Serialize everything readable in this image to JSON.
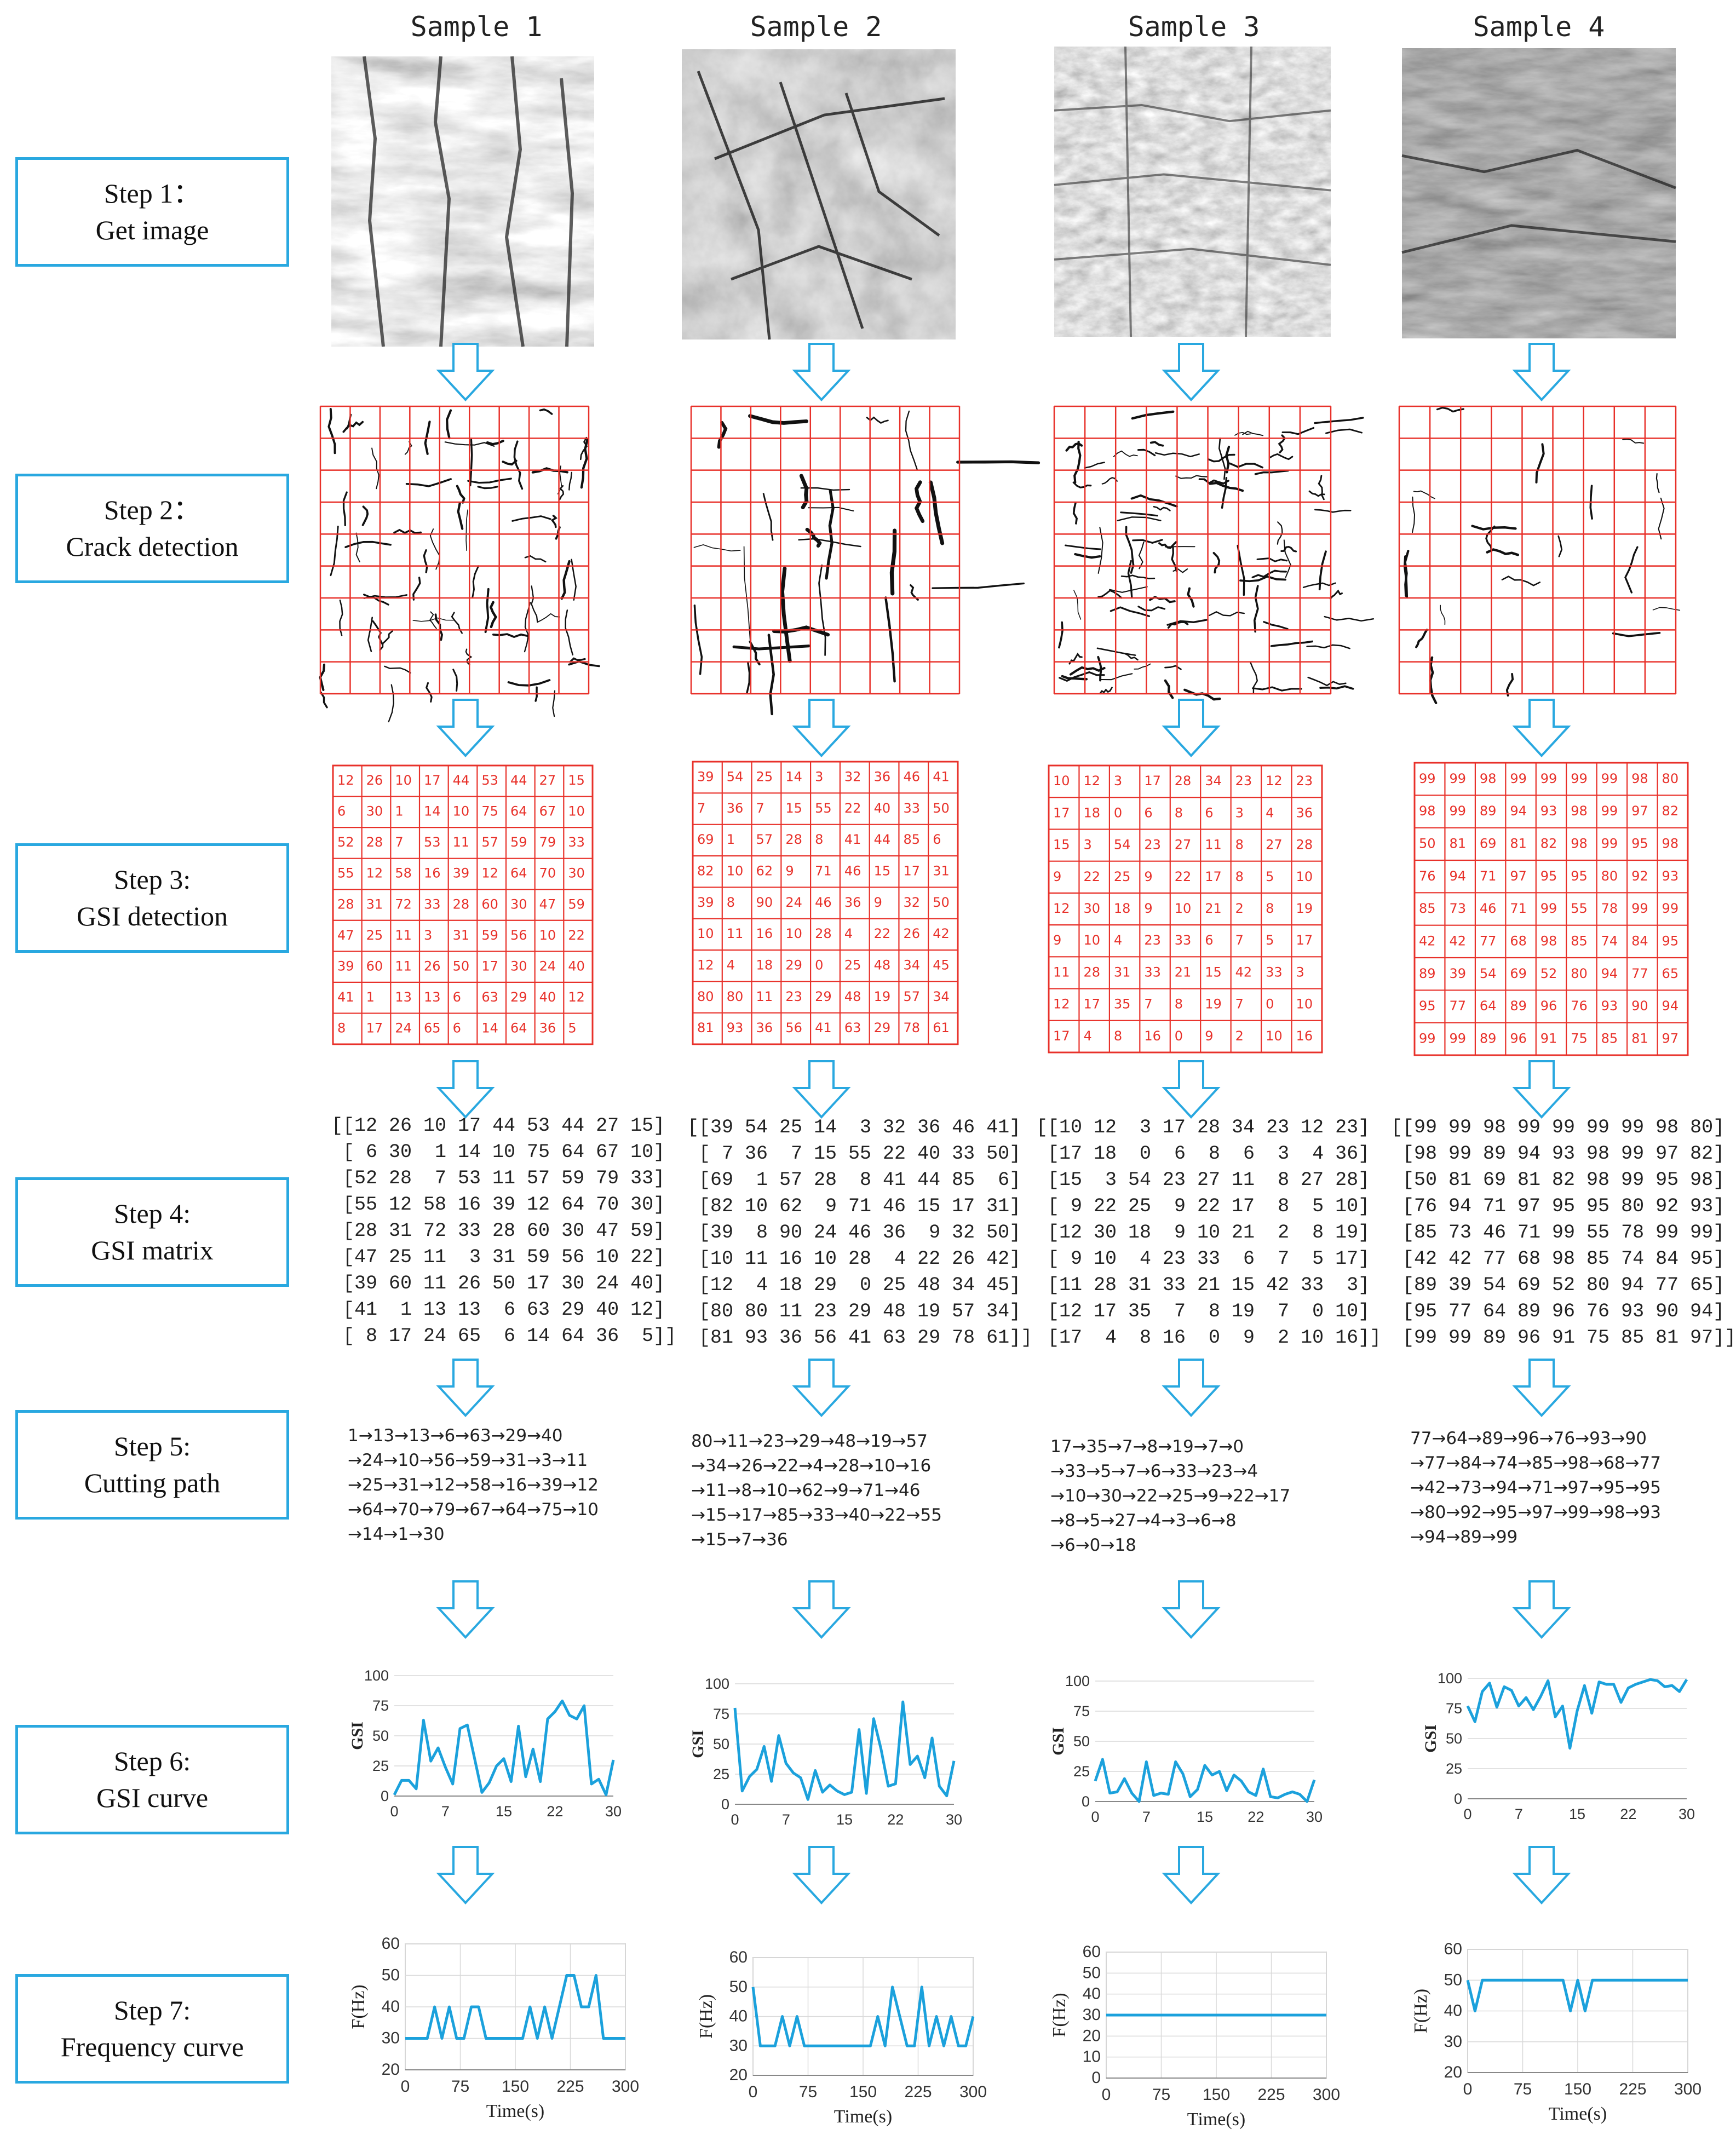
{
  "samples": [
    "Sample 1",
    "Sample 2",
    "Sample 3",
    "Sample 4"
  ],
  "steps": [
    {
      "title": "Step 1：",
      "subtitle": "Get image"
    },
    {
      "title": "Step 2：",
      "subtitle": "Crack detection"
    },
    {
      "title": "Step 3:",
      "subtitle": "GSI detection"
    },
    {
      "title": "Step 4:",
      "subtitle": "GSI matrix"
    },
    {
      "title": "Step 5:",
      "subtitle": "Cutting path"
    },
    {
      "title": "Step 6:",
      "subtitle": "GSI curve"
    },
    {
      "title": "Step 7:",
      "subtitle": "Frequency curve"
    }
  ],
  "matrices": [
    [
      [
        12,
        26,
        10,
        17,
        44,
        53,
        44,
        27,
        15
      ],
      [
        6,
        30,
        1,
        14,
        10,
        75,
        64,
        67,
        10
      ],
      [
        52,
        28,
        7,
        53,
        11,
        57,
        59,
        79,
        33
      ],
      [
        55,
        12,
        58,
        16,
        39,
        12,
        64,
        70,
        30
      ],
      [
        28,
        31,
        72,
        33,
        28,
        60,
        30,
        47,
        59
      ],
      [
        47,
        25,
        11,
        3,
        31,
        59,
        56,
        10,
        22
      ],
      [
        39,
        60,
        11,
        26,
        50,
        17,
        30,
        24,
        40
      ],
      [
        41,
        1,
        13,
        13,
        6,
        63,
        29,
        40,
        12
      ],
      [
        8,
        17,
        24,
        65,
        6,
        14,
        64,
        36,
        5
      ]
    ],
    [
      [
        39,
        54,
        25,
        14,
        3,
        32,
        36,
        46,
        41
      ],
      [
        7,
        36,
        7,
        15,
        55,
        22,
        40,
        33,
        50
      ],
      [
        69,
        1,
        57,
        28,
        8,
        41,
        44,
        85,
        6
      ],
      [
        82,
        10,
        62,
        9,
        71,
        46,
        15,
        17,
        31
      ],
      [
        39,
        8,
        90,
        24,
        46,
        36,
        9,
        32,
        50
      ],
      [
        10,
        11,
        16,
        10,
        28,
        4,
        22,
        26,
        42
      ],
      [
        12,
        4,
        18,
        29,
        0,
        25,
        48,
        34,
        45
      ],
      [
        80,
        80,
        11,
        23,
        29,
        48,
        19,
        57,
        34
      ],
      [
        81,
        93,
        36,
        56,
        41,
        63,
        29,
        78,
        61
      ]
    ],
    [
      [
        10,
        12,
        3,
        17,
        28,
        34,
        23,
        12,
        23
      ],
      [
        17,
        18,
        0,
        6,
        8,
        6,
        3,
        4,
        36
      ],
      [
        15,
        3,
        54,
        23,
        27,
        11,
        8,
        27,
        28
      ],
      [
        9,
        22,
        25,
        9,
        22,
        17,
        8,
        5,
        10
      ],
      [
        12,
        30,
        18,
        9,
        10,
        21,
        2,
        8,
        19
      ],
      [
        9,
        10,
        4,
        23,
        33,
        6,
        7,
        5,
        17
      ],
      [
        11,
        28,
        31,
        33,
        21,
        15,
        42,
        33,
        3
      ],
      [
        12,
        17,
        35,
        7,
        8,
        19,
        7,
        0,
        10
      ],
      [
        17,
        4,
        8,
        16,
        0,
        9,
        2,
        10,
        16
      ]
    ],
    [
      [
        99,
        99,
        98,
        99,
        99,
        99,
        99,
        98,
        80
      ],
      [
        98,
        99,
        89,
        94,
        93,
        98,
        99,
        97,
        82
      ],
      [
        50,
        81,
        69,
        81,
        82,
        98,
        99,
        95,
        98
      ],
      [
        76,
        94,
        71,
        97,
        95,
        95,
        80,
        92,
        93
      ],
      [
        85,
        73,
        46,
        71,
        99,
        55,
        78,
        99,
        99
      ],
      [
        42,
        42,
        77,
        68,
        98,
        85,
        74,
        84,
        95
      ],
      [
        89,
        39,
        54,
        69,
        52,
        80,
        94,
        77,
        65
      ],
      [
        95,
        77,
        64,
        89,
        96,
        76,
        93,
        90,
        94
      ],
      [
        99,
        99,
        89,
        96,
        91,
        75,
        85,
        81,
        97
      ]
    ]
  ],
  "matrix_text": [
    "[[12 26 10 17 44 53 44 27 15]\n [ 6 30  1 14 10 75 64 67 10]\n [52 28  7 53 11 57 59 79 33]\n [55 12 58 16 39 12 64 70 30]\n [28 31 72 33 28 60 30 47 59]\n [47 25 11  3 31 59 56 10 22]\n [39 60 11 26 50 17 30 24 40]\n [41  1 13 13  6 63 29 40 12]\n [ 8 17 24 65  6 14 64 36  5]]",
    "[[39 54 25 14  3 32 36 46 41]\n [ 7 36  7 15 55 22 40 33 50]\n [69  1 57 28  8 41 44 85  6]\n [82 10 62  9 71 46 15 17 31]\n [39  8 90 24 46 36  9 32 50]\n [10 11 16 10 28  4 22 26 42]\n [12  4 18 29  0 25 48 34 45]\n [80 80 11 23 29 48 19 57 34]\n [81 93 36 56 41 63 29 78 61]]",
    "[[10 12  3 17 28 34 23 12 23]\n [17 18  0  6  8  6  3  4 36]\n [15  3 54 23 27 11  8 27 28]\n [ 9 22 25  9 22 17  8  5 10]\n [12 30 18  9 10 21  2  8 19]\n [ 9 10  4 23 33  6  7  5 17]\n [11 28 31 33 21 15 42 33  3]\n [12 17 35  7  8 19  7  0 10]\n [17  4  8 16  0  9  2 10 16]]",
    "[[99 99 98 99 99 99 99 98 80]\n [98 99 89 94 93 98 99 97 82]\n [50 81 69 81 82 98 99 95 98]\n [76 94 71 97 95 95 80 92 93]\n [85 73 46 71 99 55 78 99 99]\n [42 42 77 68 98 85 74 84 95]\n [89 39 54 69 52 80 94 77 65]\n [95 77 64 89 96 76 93 90 94]\n [99 99 89 96 91 75 85 81 97]]"
  ],
  "paths": [
    "1→13→13→6→63→29→40\n→24→10→56→59→31→3→11\n→25→31→12→58→16→39→12\n→64→70→79→67→64→75→10\n→14→1→30",
    "80→11→23→29→48→19→57\n→34→26→22→4→28→10→16\n→11→8→10→62→9→71→46\n→15→17→85→33→40→22→55\n→15→7→36",
    "17→35→7→8→19→7→0\n→33→5→7→6→33→23→4\n→10→30→22→25→9→22→17\n→8→5→27→4→3→6→8\n→6→0→18",
    "77→64→89→96→76→93→90\n→77→84→74→85→98→68→77\n→42→73→94→71→97→95→95\n→80→92→95→97→99→98→93\n→94→89→99"
  ],
  "chart_data": [
    {
      "type": "line",
      "sample": "Sample 1",
      "ylabel": "GSI",
      "xticks": [
        0,
        7,
        15,
        22,
        30
      ],
      "yticks": [
        0,
        25,
        50,
        75,
        100
      ],
      "ylim": [
        0,
        100
      ],
      "xlim": [
        0,
        30
      ],
      "x": [
        0,
        1,
        2,
        3,
        4,
        5,
        6,
        7,
        8,
        9,
        10,
        11,
        12,
        13,
        14,
        15,
        16,
        17,
        18,
        19,
        20,
        21,
        22,
        23,
        24,
        25,
        26,
        27,
        28,
        29,
        30
      ],
      "y": [
        1,
        13,
        13,
        6,
        63,
        29,
        40,
        24,
        10,
        56,
        59,
        31,
        3,
        11,
        25,
        31,
        12,
        58,
        16,
        39,
        12,
        64,
        70,
        79,
        67,
        64,
        75,
        10,
        14,
        1,
        30
      ]
    },
    {
      "type": "line",
      "sample": "Sample 2",
      "ylabel": "GSI",
      "xticks": [
        0,
        7,
        15,
        22,
        30
      ],
      "yticks": [
        0,
        25,
        50,
        75,
        100
      ],
      "ylim": [
        0,
        100
      ],
      "xlim": [
        0,
        30
      ],
      "x": [
        0,
        1,
        2,
        3,
        4,
        5,
        6,
        7,
        8,
        9,
        10,
        11,
        12,
        13,
        14,
        15,
        16,
        17,
        18,
        19,
        20,
        21,
        22,
        23,
        24,
        25,
        26,
        27,
        28,
        29,
        30
      ],
      "y": [
        80,
        11,
        23,
        29,
        48,
        19,
        57,
        34,
        26,
        22,
        4,
        28,
        10,
        16,
        11,
        8,
        10,
        62,
        9,
        71,
        46,
        15,
        17,
        85,
        33,
        40,
        22,
        55,
        15,
        7,
        36
      ]
    },
    {
      "type": "line",
      "sample": "Sample 3",
      "ylabel": "GSI",
      "xticks": [
        0,
        7,
        15,
        22,
        30
      ],
      "yticks": [
        0,
        25,
        50,
        75,
        100
      ],
      "ylim": [
        0,
        100
      ],
      "xlim": [
        0,
        30
      ],
      "x": [
        0,
        1,
        2,
        3,
        4,
        5,
        6,
        7,
        8,
        9,
        10,
        11,
        12,
        13,
        14,
        15,
        16,
        17,
        18,
        19,
        20,
        21,
        22,
        23,
        24,
        25,
        26,
        27,
        28,
        29,
        30
      ],
      "y": [
        17,
        35,
        7,
        8,
        19,
        7,
        0,
        33,
        5,
        7,
        6,
        33,
        23,
        4,
        10,
        30,
        22,
        25,
        9,
        22,
        17,
        8,
        5,
        27,
        4,
        3,
        6,
        8,
        6,
        0,
        18
      ]
    },
    {
      "type": "line",
      "sample": "Sample 4",
      "ylabel": "GSI",
      "xticks": [
        0,
        7,
        15,
        22,
        30
      ],
      "yticks": [
        0,
        25,
        50,
        75,
        100
      ],
      "ylim": [
        0,
        100
      ],
      "xlim": [
        0,
        30
      ],
      "x": [
        0,
        1,
        2,
        3,
        4,
        5,
        6,
        7,
        8,
        9,
        10,
        11,
        12,
        13,
        14,
        15,
        16,
        17,
        18,
        19,
        20,
        21,
        22,
        23,
        24,
        25,
        26,
        27,
        28,
        29,
        30
      ],
      "y": [
        77,
        64,
        89,
        96,
        76,
        93,
        90,
        77,
        84,
        74,
        85,
        98,
        68,
        77,
        42,
        73,
        94,
        71,
        97,
        95,
        95,
        80,
        92,
        95,
        97,
        99,
        98,
        93,
        94,
        89,
        99
      ]
    },
    {
      "type": "line",
      "sample": "Sample 1",
      "ylabel": "F(Hz)",
      "xlabel": "Time(s)",
      "xticks": [
        0,
        75,
        150,
        225,
        300
      ],
      "yticks": [
        20,
        30,
        40,
        50,
        60
      ],
      "ylim": [
        20,
        60
      ],
      "xlim": [
        0,
        300
      ],
      "x": [
        0,
        10,
        20,
        30,
        40,
        50,
        60,
        70,
        80,
        90,
        100,
        110,
        120,
        130,
        140,
        150,
        160,
        170,
        180,
        190,
        200,
        210,
        220,
        230,
        240,
        250,
        260,
        270,
        280,
        290,
        300
      ],
      "y": [
        30,
        30,
        30,
        30,
        40,
        30,
        40,
        30,
        30,
        40,
        40,
        30,
        30,
        30,
        30,
        30,
        30,
        40,
        30,
        40,
        30,
        40,
        50,
        50,
        40,
        40,
        50,
        30,
        30,
        30,
        30
      ]
    },
    {
      "type": "line",
      "sample": "Sample 2",
      "ylabel": "F(Hz)",
      "xlabel": "Time(s)",
      "xticks": [
        0,
        75,
        150,
        225,
        300
      ],
      "yticks": [
        20,
        30,
        40,
        50,
        60
      ],
      "ylim": [
        20,
        60
      ],
      "xlim": [
        0,
        300
      ],
      "x": [
        0,
        10,
        20,
        30,
        40,
        50,
        60,
        70,
        80,
        90,
        100,
        110,
        120,
        130,
        140,
        150,
        160,
        170,
        180,
        190,
        200,
        210,
        220,
        230,
        240,
        250,
        260,
        270,
        280,
        290,
        300
      ],
      "y": [
        50,
        30,
        30,
        30,
        40,
        30,
        40,
        30,
        30,
        30,
        30,
        30,
        30,
        30,
        30,
        30,
        30,
        40,
        30,
        50,
        40,
        30,
        30,
        50,
        30,
        40,
        30,
        40,
        30,
        30,
        40
      ]
    },
    {
      "type": "line",
      "sample": "Sample 3",
      "ylabel": "F(Hz)",
      "xlabel": "Time(s)",
      "xticks": [
        0,
        75,
        150,
        225,
        300
      ],
      "yticks": [
        0,
        10,
        20,
        30,
        40,
        50,
        60
      ],
      "ylim": [
        0,
        60
      ],
      "xlim": [
        0,
        300
      ],
      "x": [
        0,
        300
      ],
      "y": [
        30,
        30
      ]
    },
    {
      "type": "line",
      "sample": "Sample 4",
      "ylabel": "F(Hz)",
      "xlabel": "Time(s)",
      "xticks": [
        0,
        75,
        150,
        225,
        300
      ],
      "yticks": [
        20,
        30,
        40,
        50,
        60
      ],
      "ylim": [
        20,
        60
      ],
      "xlim": [
        0,
        300
      ],
      "x": [
        0,
        10,
        20,
        30,
        40,
        50,
        60,
        70,
        80,
        90,
        100,
        110,
        120,
        130,
        140,
        150,
        160,
        170,
        180,
        190,
        200,
        210,
        220,
        230,
        240,
        250,
        260,
        270,
        280,
        290,
        300
      ],
      "y": [
        50,
        40,
        50,
        50,
        50,
        50,
        50,
        50,
        50,
        50,
        50,
        50,
        50,
        50,
        40,
        50,
        40,
        50,
        50,
        50,
        50,
        50,
        50,
        50,
        50,
        50,
        50,
        50,
        50,
        50,
        50
      ]
    }
  ],
  "colors": {
    "accent": "#29a8e0",
    "grid": "#e8312a",
    "line": "#1ba1dc",
    "crack": "#111111"
  }
}
